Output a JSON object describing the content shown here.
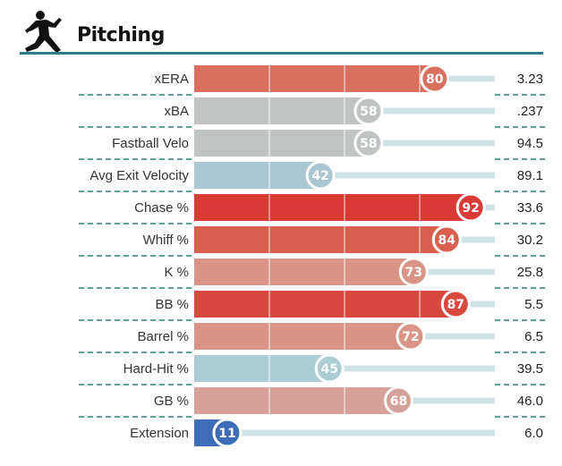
{
  "header": {
    "title": "Pitching",
    "icon": "pitcher-silhouette-icon"
  },
  "colors": {
    "header_rule": "#2f7c8c",
    "track": "#cfe3e6",
    "divider": "#2f7c8c"
  },
  "chart_data": {
    "type": "bar",
    "orientation": "horizontal",
    "xlim": [
      0,
      100
    ],
    "rows": [
      {
        "metric": "xERA",
        "percentile": 80,
        "value": "3.23",
        "color": "#d9705f"
      },
      {
        "metric": "xBA",
        "percentile": 58,
        "value": ".237",
        "color": "#bfc3c2"
      },
      {
        "metric": "Fastball Velo",
        "percentile": 58,
        "value": "94.5",
        "color": "#bfc3c2"
      },
      {
        "metric": "Avg Exit Velocity",
        "percentile": 42,
        "value": "89.1",
        "color": "#a9c6d2"
      },
      {
        "metric": "Chase %",
        "percentile": 92,
        "value": "33.6",
        "color": "#d93a35"
      },
      {
        "metric": "Whiff %",
        "percentile": 84,
        "value": "30.2",
        "color": "#d9604f"
      },
      {
        "metric": "K %",
        "percentile": 73,
        "value": "25.8",
        "color": "#d99487"
      },
      {
        "metric": "BB %",
        "percentile": 87,
        "value": "5.5",
        "color": "#d9483f"
      },
      {
        "metric": "Barrel %",
        "percentile": 72,
        "value": "6.5",
        "color": "#d99487"
      },
      {
        "metric": "Hard-Hit %",
        "percentile": 45,
        "value": "39.5",
        "color": "#abccd4"
      },
      {
        "metric": "GB %",
        "percentile": 68,
        "value": "46.0",
        "color": "#d6a199"
      },
      {
        "metric": "Extension",
        "percentile": 11,
        "value": "6.0",
        "color": "#3e6cb8"
      }
    ]
  }
}
